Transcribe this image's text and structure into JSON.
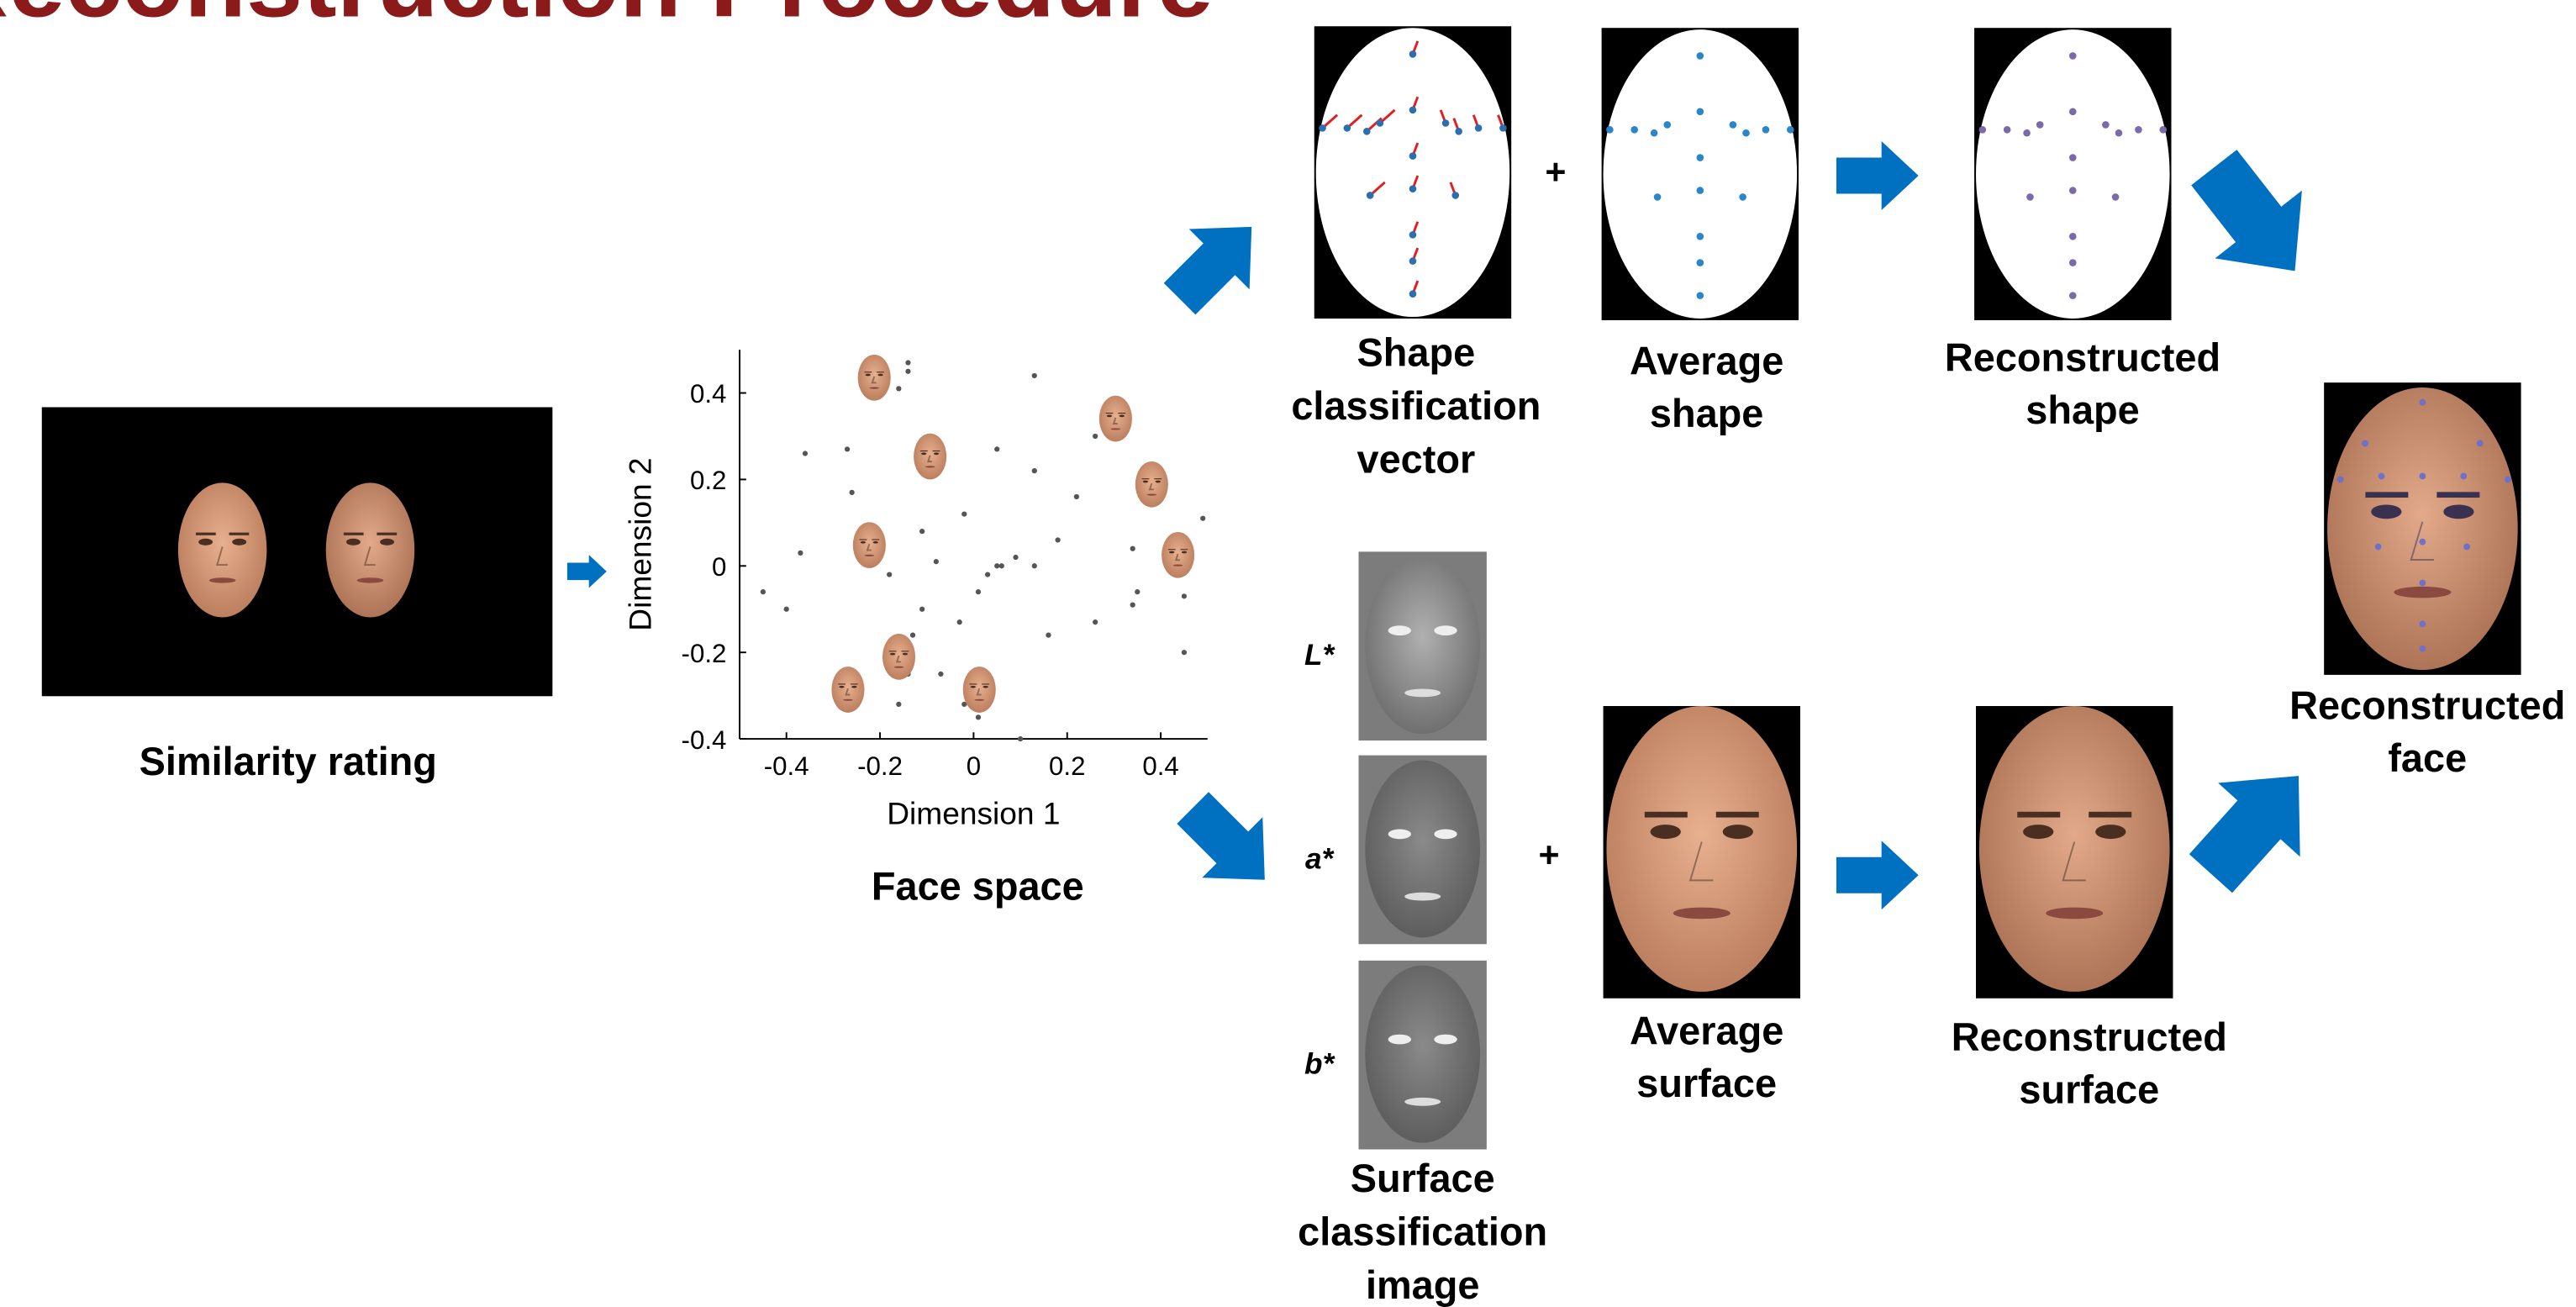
{
  "title": "Reconstruction Procedure",
  "similarity": {
    "label": "Similarity rating"
  },
  "face_space": {
    "label": "Face space",
    "plot": {
      "type": "scatter",
      "x_label": "Dimension 1",
      "y_label": "Dimension 2",
      "xlim": [
        -0.5,
        0.5
      ],
      "ylim": [
        -0.4,
        0.5
      ],
      "xticks": [
        -0.4,
        -0.2,
        0,
        0.2,
        0.4
      ],
      "yticks": [
        -0.4,
        -0.2,
        0,
        0.2,
        0.4
      ],
      "x": [
        -0.45,
        -0.4,
        -0.36,
        -0.27,
        -0.37,
        -0.26,
        -0.16,
        -0.14,
        -0.14,
        0.13,
        0.05,
        0.13,
        0.22,
        0.26,
        0.49,
        0.45,
        0.35,
        0.34,
        0.26,
        0.16,
        0.06,
        0.03,
        0.05,
        0.09,
        0.13,
        0.01,
        -0.03,
        -0.11,
        -0.13,
        -0.07,
        -0.14,
        -0.16,
        -0.02,
        0.01,
        0.1,
        0.45,
        0.34,
        -0.08,
        -0.11,
        -0.18,
        -0.02,
        0.18
      ],
      "y": [
        -0.06,
        -0.1,
        0.26,
        0.27,
        0.03,
        0.17,
        0.41,
        0.47,
        0.45,
        0.44,
        0.27,
        0.22,
        0.16,
        0.3,
        0.11,
        -0.07,
        -0.06,
        -0.09,
        -0.13,
        -0.16,
        0.0,
        -0.02,
        0.0,
        0.02,
        0.0,
        -0.06,
        -0.13,
        -0.1,
        -0.16,
        -0.25,
        -0.25,
        -0.32,
        -0.32,
        -0.35,
        -0.4,
        -0.2,
        0.04,
        0.01,
        0.08,
        -0.02,
        0.12,
        0.06
      ]
    }
  },
  "shape": {
    "classification_vector": [
      "Shape",
      "classification",
      "vector"
    ],
    "average": [
      "Average",
      "shape"
    ],
    "reconstructed": [
      "Reconstructed",
      "shape"
    ]
  },
  "surface": {
    "channels": [
      "L*",
      "a*",
      "b*"
    ],
    "classification_image": [
      "Surface",
      "classification",
      "image"
    ],
    "average": [
      "Average",
      "surface"
    ],
    "reconstructed": [
      "Reconstructed",
      "surface"
    ]
  },
  "reconstructed_face": [
    "Reconstructed",
    "face"
  ],
  "operators": [
    "+",
    "+"
  ]
}
